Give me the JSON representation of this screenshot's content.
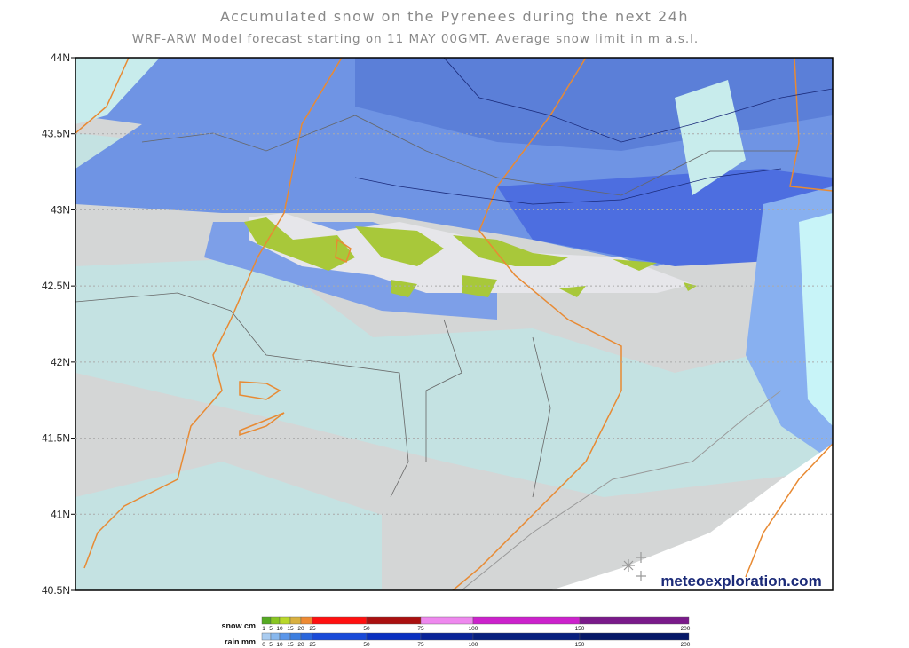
{
  "header": {
    "title": "Accumulated snow on the Pyrenees during the next 24h",
    "subtitle": "WRF-ARW Model forecast starting on 11 MAY 00GMT.  Average snow limit in m a.s.l."
  },
  "map": {
    "lat_labels": [
      "44N",
      "43.5N",
      "43N",
      "42.5N",
      "42N",
      "41.5N",
      "41N",
      "40.5N"
    ],
    "watermark": "meteoexploration.com"
  },
  "legend": {
    "snow": {
      "label": "snow cm",
      "ticks": [
        1,
        5,
        10,
        15,
        20,
        25,
        50,
        75,
        100,
        150,
        200
      ],
      "colors": [
        "#55aa22",
        "#88c622",
        "#b9d82a",
        "#d9b040",
        "#ee8a33",
        "#ff1010",
        "#aa1010",
        "#ee88ee",
        "#cc22cc",
        "#7a1a8a"
      ]
    },
    "rain": {
      "label": "rain mm",
      "ticks": [
        0,
        5,
        10,
        15,
        20,
        25,
        50,
        75,
        100,
        150,
        200
      ],
      "colors": [
        "#aaccf0",
        "#88b8ee",
        "#5a96ea",
        "#3c7ee0",
        "#2a66dc",
        "#1a4ad8",
        "#0a30c0",
        "#0a2498",
        "#08207e",
        "#061868"
      ]
    }
  }
}
